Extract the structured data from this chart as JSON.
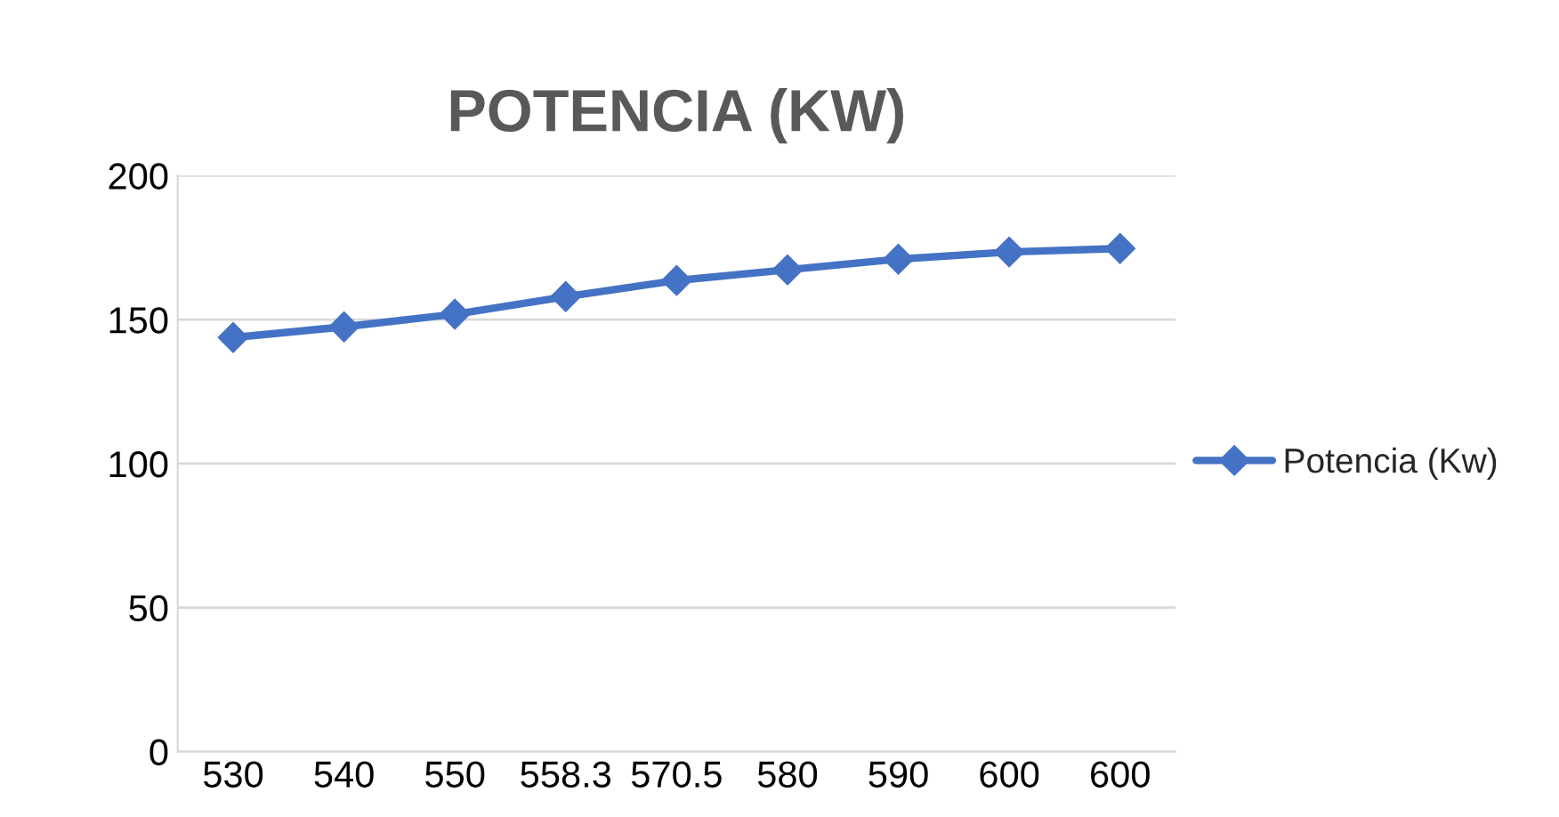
{
  "chart_data": {
    "type": "line",
    "title": "POTENCIA (KW)",
    "categories": [
      "530",
      "540",
      "550",
      "558.3",
      "570.5",
      "580",
      "590",
      "600",
      "600"
    ],
    "series": [
      {
        "name": "Potencia (Kw)",
        "color": "#4472c4",
        "values": [
          143.8,
          147.5,
          151.9,
          158,
          163.6,
          167.3,
          171,
          173.5,
          174.7
        ]
      }
    ],
    "ylim": [
      0,
      200
    ],
    "yticks": [
      0,
      50,
      100,
      150,
      200
    ],
    "grid": "y",
    "legend": "right",
    "marker": "diamond",
    "line_style": "solid"
  }
}
